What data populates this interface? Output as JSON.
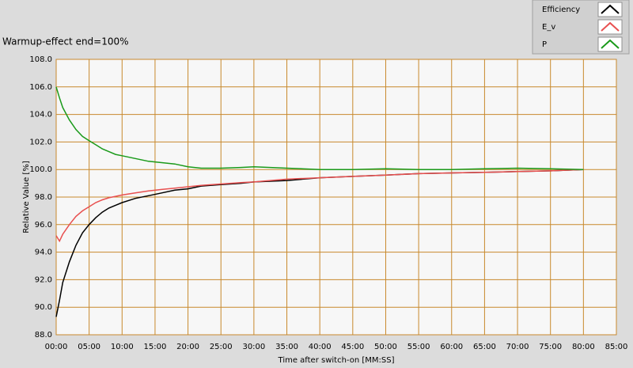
{
  "chart_data": {
    "type": "line",
    "title": "Warmup-effect end=100%",
    "xlabel": "Time after switch-on [MM:SS]",
    "ylabel": "Relative Value [%]",
    "legend": "top-right",
    "grid": true,
    "grid_color": "#c8892c",
    "x": [
      0,
      0.5,
      1,
      2,
      3,
      4,
      5,
      6,
      7,
      8,
      9,
      10,
      12,
      14,
      16,
      18,
      20,
      22,
      25,
      28,
      30,
      35,
      40,
      45,
      50,
      55,
      60,
      65,
      70,
      75,
      80
    ],
    "series": [
      {
        "name": "Efficiency",
        "color": "#000000",
        "values": [
          89.3,
          90.5,
          91.8,
          93.3,
          94.5,
          95.4,
          96.0,
          96.5,
          96.9,
          97.2,
          97.4,
          97.6,
          97.9,
          98.1,
          98.3,
          98.5,
          98.6,
          98.8,
          98.9,
          99.0,
          99.1,
          99.2,
          99.4,
          99.5,
          99.6,
          99.7,
          99.75,
          99.8,
          99.85,
          99.9,
          100.0
        ]
      },
      {
        "name": "E_v",
        "color": "#e85050",
        "values": [
          95.2,
          94.8,
          95.3,
          96.0,
          96.6,
          97.0,
          97.3,
          97.6,
          97.8,
          97.95,
          98.05,
          98.15,
          98.3,
          98.45,
          98.55,
          98.65,
          98.75,
          98.85,
          98.95,
          99.05,
          99.1,
          99.3,
          99.4,
          99.5,
          99.6,
          99.7,
          99.75,
          99.8,
          99.85,
          99.9,
          100.0
        ]
      },
      {
        "name": "P",
        "color": "#1a9a1a",
        "values": [
          106.0,
          105.2,
          104.5,
          103.6,
          102.9,
          102.4,
          102.1,
          101.8,
          101.5,
          101.3,
          101.1,
          101.0,
          100.8,
          100.6,
          100.5,
          100.4,
          100.2,
          100.1,
          100.1,
          100.15,
          100.2,
          100.1,
          100.0,
          100.0,
          100.05,
          100.0,
          100.0,
          100.05,
          100.1,
          100.05,
          100.0
        ]
      }
    ],
    "xlim": [
      0,
      85
    ],
    "xticks": [
      {
        "value": 0,
        "label": "00:00"
      },
      {
        "value": 5,
        "label": "05:00"
      },
      {
        "value": 10,
        "label": "10:00"
      },
      {
        "value": 15,
        "label": "15:00"
      },
      {
        "value": 20,
        "label": "20:00"
      },
      {
        "value": 25,
        "label": "25:00"
      },
      {
        "value": 30,
        "label": "30:00"
      },
      {
        "value": 35,
        "label": "35:00"
      },
      {
        "value": 40,
        "label": "40:00"
      },
      {
        "value": 45,
        "label": "45:00"
      },
      {
        "value": 50,
        "label": "50:00"
      },
      {
        "value": 55,
        "label": "55:00"
      },
      {
        "value": 60,
        "label": "60:00"
      },
      {
        "value": 65,
        "label": "65:00"
      },
      {
        "value": 70,
        "label": "70:00"
      },
      {
        "value": 75,
        "label": "75:00"
      },
      {
        "value": 80,
        "label": "80:00"
      },
      {
        "value": 85,
        "label": "85:00"
      }
    ],
    "ylim": [
      88,
      108
    ],
    "yticks": [
      {
        "value": 88,
        "label": "88.0"
      },
      {
        "value": 90,
        "label": "90.0"
      },
      {
        "value": 92,
        "label": "92.0"
      },
      {
        "value": 94,
        "label": "94.0"
      },
      {
        "value": 96,
        "label": "96.0"
      },
      {
        "value": 98,
        "label": "98.0"
      },
      {
        "value": 100,
        "label": "100.0"
      },
      {
        "value": 102,
        "label": "102.0"
      },
      {
        "value": 104,
        "label": "104.0"
      },
      {
        "value": 106,
        "label": "106.0"
      },
      {
        "value": 108,
        "label": "108.0"
      }
    ]
  }
}
